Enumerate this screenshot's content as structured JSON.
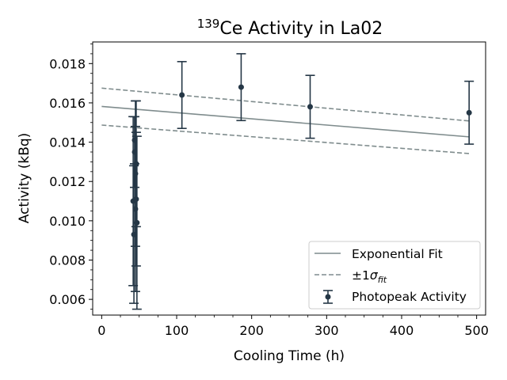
{
  "chart_data": {
    "type": "scatter",
    "title_sup": "139",
    "title_main": "Ce Activity in La02",
    "xlabel": "Cooling Time (h)",
    "ylabel": "Activity (kBq)",
    "xlim": [
      -12,
      512
    ],
    "ylim": [
      0.0052,
      0.0191
    ],
    "xticks": [
      0,
      100,
      200,
      300,
      400,
      500
    ],
    "xtick_labels": [
      "0",
      "100",
      "200",
      "300",
      "400",
      "500"
    ],
    "yticks": [
      0.006,
      0.008,
      0.01,
      0.012,
      0.014,
      0.016,
      0.018
    ],
    "ytick_labels": [
      "0.006",
      "0.008",
      "0.010",
      "0.012",
      "0.014",
      "0.016",
      "0.018"
    ],
    "grid": false,
    "legend_position": "lower right",
    "legend": {
      "fit_label": "Exponential Fit",
      "sigma_prefix": "±1",
      "sigma_symbol": "σ",
      "sigma_sub": "fit",
      "points_label": "Photopeak Activity"
    },
    "colors": {
      "points": "#253746",
      "fit": "#7f8c8d"
    },
    "fit": {
      "x": [
        0,
        490
      ],
      "y": [
        0.01582,
        0.01427
      ]
    },
    "fit_upper": {
      "x": [
        0,
        490
      ],
      "y": [
        0.01675,
        0.01508
      ]
    },
    "fit_lower": {
      "x": [
        0,
        490
      ],
      "y": [
        0.01487,
        0.01342
      ]
    },
    "points": [
      {
        "x": 42,
        "y": 0.011,
        "yerr": 0.0043
      },
      {
        "x": 43,
        "y": 0.0093,
        "yerr": 0.0035
      },
      {
        "x": 44,
        "y": 0.0141,
        "yerr": 0.0012
      },
      {
        "x": 44,
        "y": 0.0135,
        "yerr": 0.0018
      },
      {
        "x": 45,
        "y": 0.0124,
        "yerr": 0.0037
      },
      {
        "x": 45,
        "y": 0.0106,
        "yerr": 0.0042
      },
      {
        "x": 46,
        "y": 0.0129,
        "yerr": 0.0032
      },
      {
        "x": 46,
        "y": 0.0111,
        "yerr": 0.0034
      },
      {
        "x": 47,
        "y": 0.0099,
        "yerr": 0.0044
      },
      {
        "x": 107,
        "y": 0.0164,
        "yerr": 0.0017
      },
      {
        "x": 186,
        "y": 0.0168,
        "yerr": 0.0017
      },
      {
        "x": 278,
        "y": 0.0158,
        "yerr": 0.0016
      },
      {
        "x": 490,
        "y": 0.0155,
        "yerr": 0.0016
      }
    ]
  }
}
